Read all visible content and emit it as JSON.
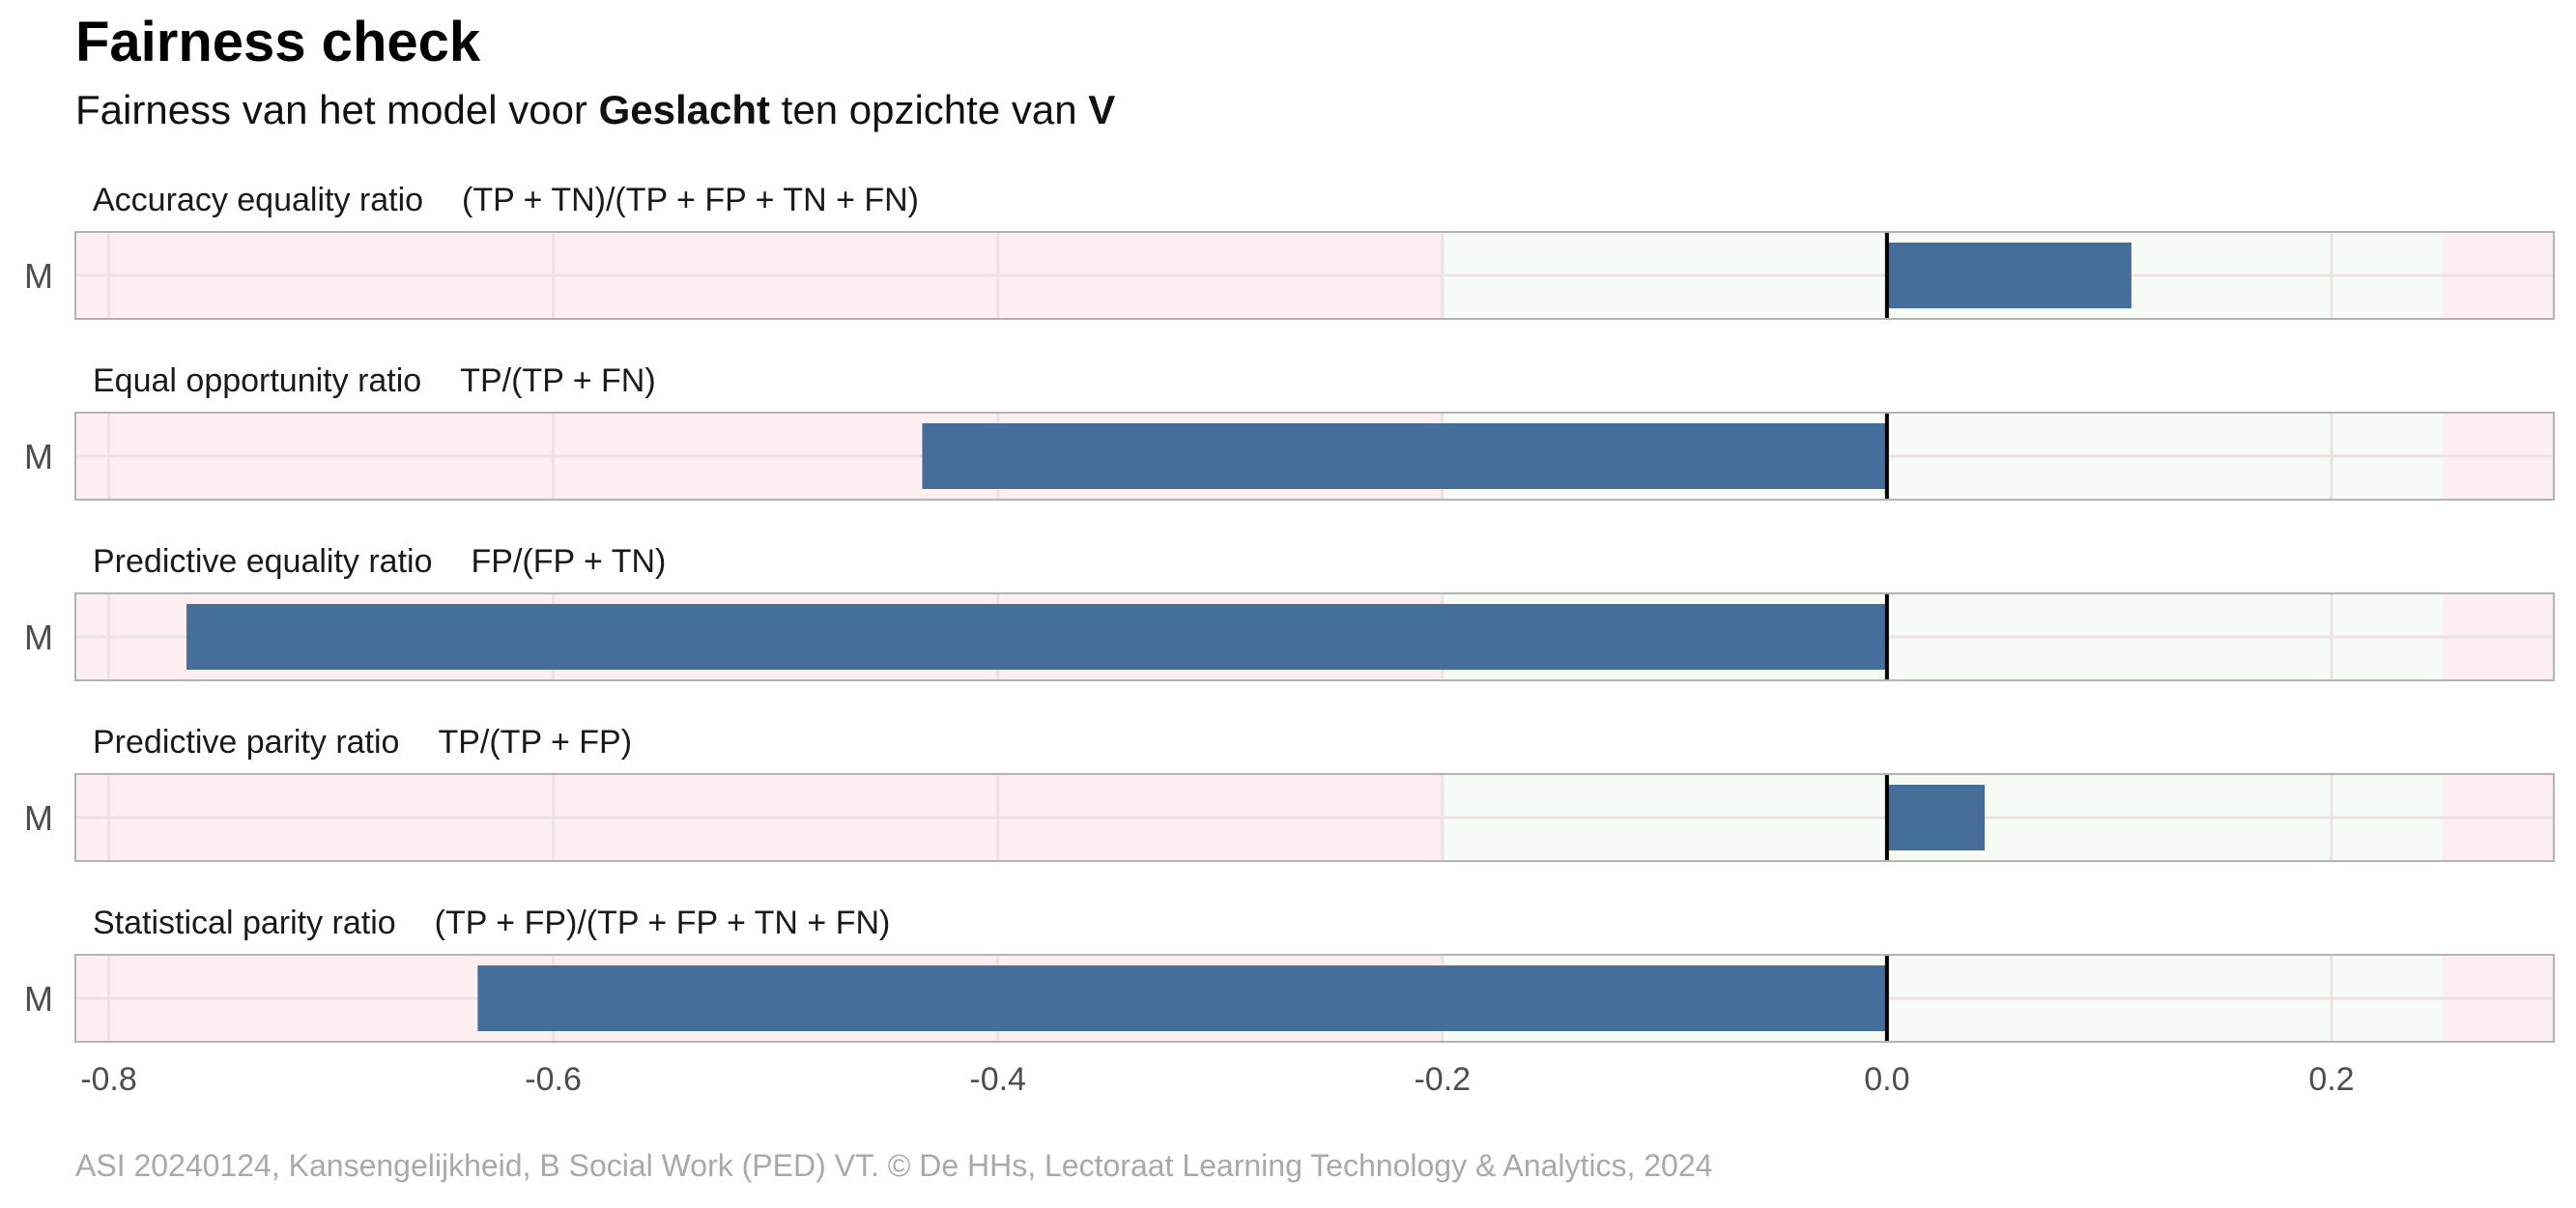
{
  "header": {
    "title": "Fairness check",
    "subtitle_prefix": "Fairness van het model voor ",
    "subtitle_group": "Geslacht",
    "subtitle_middle": " ten opzichte van ",
    "subtitle_reference": "V"
  },
  "caption": "ASI 20240124, Kansengelijkheid, B Social Work (PED) VT. © De HHs, Lectoraat Learning Technology & Analytics, 2024",
  "chart_data": {
    "type": "bar",
    "orientation": "horizontal",
    "xlim": [
      -0.815,
      0.3
    ],
    "x_ticks": [
      -0.8,
      -0.6,
      -0.4,
      -0.2,
      0.0,
      0.2
    ],
    "x_tick_labels": [
      "-0.8",
      "-0.6",
      "-0.4",
      "-0.2",
      "0.0",
      "0.2"
    ],
    "fair_band": [
      -0.2,
      0.25
    ],
    "colors": {
      "bar": "#466E9B",
      "unfair_band": "#FCEEF1",
      "fair_band": "#F7FBF5",
      "zero_line": "#000000",
      "panel_border": "#B3B3B3",
      "grid": "#EBE2E4"
    },
    "facets": [
      {
        "metric": "Accuracy equality ratio",
        "formula": "(TP + TN)/(TP + FP + TN + FN)",
        "category": "M",
        "value": 0.11
      },
      {
        "metric": "Equal opportunity ratio",
        "formula": "TP/(TP + FN)",
        "category": "M",
        "value": -0.434
      },
      {
        "metric": "Predictive equality ratio",
        "formula": "FP/(FP + TN)",
        "category": "M",
        "value": -0.765
      },
      {
        "metric": "Predictive parity ratio",
        "formula": "TP/(TP + FP)",
        "category": "M",
        "value": 0.044
      },
      {
        "metric": "Statistical parity ratio",
        "formula": "(TP + FP)/(TP + FP + TN + FN)",
        "category": "M",
        "value": -0.634
      }
    ]
  }
}
